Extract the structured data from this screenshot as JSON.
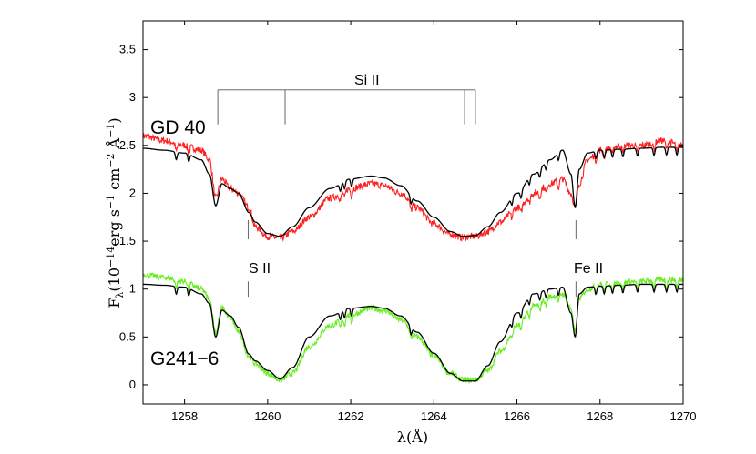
{
  "chart_data": {
    "type": "line",
    "title": "",
    "xlabel": "λ(Å)",
    "ylabel_parts": {
      "base": "F",
      "sub": "λ",
      "pre": "(10",
      "exp1": "−14",
      "mid": "erg s",
      "exp2": "−1",
      "mid2": " cm",
      "exp3": "−2",
      "mid3": " Å",
      "exp4": "−1",
      "post": ")"
    },
    "xlim": [
      1257,
      1270
    ],
    "ylim": [
      -0.2,
      3.8
    ],
    "xticks": [
      1258,
      1260,
      1262,
      1264,
      1266,
      1268,
      1270
    ],
    "xtick_labels": [
      "1258",
      "1260",
      "1262",
      "1264",
      "1266",
      "1268",
      "1270"
    ],
    "yticks": [
      0,
      0.5,
      1,
      1.5,
      2,
      2.5,
      3,
      3.5
    ],
    "ytick_labels": [
      "0",
      "0.5",
      "1",
      "1.5",
      "2",
      "2.5",
      "3",
      "3.5"
    ],
    "series": [
      {
        "name": "GD 40 observed",
        "color": "#ff2020",
        "noise": 0.035,
        "x": [
          1257.0,
          1257.5,
          1258.0,
          1258.4,
          1258.6,
          1258.75,
          1258.9,
          1259.1,
          1259.3,
          1259.55,
          1259.7,
          1260.0,
          1260.3,
          1260.6,
          1261.0,
          1261.5,
          1262.0,
          1262.5,
          1262.8,
          1263.2,
          1263.6,
          1264.0,
          1264.4,
          1264.7,
          1265.0,
          1265.3,
          1265.6,
          1266.0,
          1266.4,
          1266.8,
          1267.1,
          1267.3,
          1267.4,
          1267.5,
          1267.7,
          1268.0,
          1268.5,
          1269.0,
          1269.5,
          1270.0
        ],
        "y": [
          2.6,
          2.55,
          2.5,
          2.45,
          2.35,
          1.95,
          2.15,
          2.05,
          2.0,
          1.85,
          1.65,
          1.55,
          1.53,
          1.6,
          1.75,
          1.95,
          2.05,
          2.1,
          2.08,
          2.0,
          1.85,
          1.68,
          1.57,
          1.54,
          1.55,
          1.6,
          1.7,
          1.85,
          2.0,
          2.1,
          2.15,
          2.0,
          1.85,
          2.1,
          2.35,
          2.45,
          2.5,
          2.5,
          2.55,
          2.5
        ]
      },
      {
        "name": "GD 40 model",
        "color": "#000000",
        "noise": 0,
        "x": [
          1257.0,
          1257.5,
          1258.0,
          1258.4,
          1258.6,
          1258.75,
          1258.9,
          1259.1,
          1259.3,
          1259.55,
          1259.7,
          1260.0,
          1260.3,
          1260.6,
          1261.0,
          1261.5,
          1262.0,
          1262.5,
          1262.8,
          1263.2,
          1263.6,
          1264.0,
          1264.4,
          1264.7,
          1265.0,
          1265.3,
          1265.6,
          1266.0,
          1266.4,
          1266.8,
          1267.1,
          1267.3,
          1267.4,
          1267.5,
          1267.7,
          1268.0,
          1268.5,
          1269.0,
          1269.5,
          1270.0
        ],
        "y": [
          2.47,
          2.45,
          2.42,
          2.35,
          2.2,
          1.87,
          2.1,
          2.05,
          2.0,
          1.8,
          1.7,
          1.58,
          1.55,
          1.65,
          1.85,
          2.05,
          2.15,
          2.18,
          2.16,
          2.08,
          1.92,
          1.75,
          1.6,
          1.55,
          1.56,
          1.65,
          1.8,
          2.0,
          2.2,
          2.35,
          2.45,
          2.2,
          1.85,
          2.25,
          2.42,
          2.45,
          2.46,
          2.47,
          2.48,
          2.48
        ]
      },
      {
        "name": "G241-6 observed",
        "color": "#66ee22",
        "noise": 0.03,
        "x": [
          1257.0,
          1257.5,
          1258.0,
          1258.4,
          1258.6,
          1258.75,
          1258.9,
          1259.1,
          1259.3,
          1259.55,
          1259.7,
          1260.0,
          1260.3,
          1260.6,
          1261.0,
          1261.5,
          1262.0,
          1262.5,
          1262.8,
          1263.2,
          1263.6,
          1264.0,
          1264.4,
          1264.7,
          1265.0,
          1265.3,
          1265.6,
          1266.0,
          1266.4,
          1266.8,
          1267.1,
          1267.3,
          1267.4,
          1267.5,
          1267.7,
          1268.0,
          1268.5,
          1269.0,
          1269.5,
          1270.0
        ],
        "y": [
          1.15,
          1.12,
          1.08,
          1.0,
          0.9,
          0.55,
          0.8,
          0.7,
          0.55,
          0.3,
          0.22,
          0.12,
          0.05,
          0.12,
          0.4,
          0.62,
          0.73,
          0.8,
          0.78,
          0.68,
          0.5,
          0.3,
          0.12,
          0.05,
          0.05,
          0.15,
          0.35,
          0.62,
          0.82,
          0.92,
          0.95,
          0.8,
          0.55,
          0.9,
          1.0,
          1.05,
          1.07,
          1.08,
          1.1,
          1.1
        ]
      },
      {
        "name": "G241-6 model",
        "color": "#000000",
        "noise": 0,
        "x": [
          1257.0,
          1257.5,
          1258.0,
          1258.4,
          1258.6,
          1258.75,
          1258.9,
          1259.1,
          1259.3,
          1259.55,
          1259.7,
          1260.0,
          1260.3,
          1260.6,
          1261.0,
          1261.5,
          1262.0,
          1262.5,
          1262.8,
          1263.2,
          1263.6,
          1264.0,
          1264.4,
          1264.7,
          1265.0,
          1265.3,
          1265.6,
          1266.0,
          1266.4,
          1266.8,
          1267.1,
          1267.3,
          1267.4,
          1267.5,
          1267.7,
          1268.0,
          1268.5,
          1269.0,
          1269.5,
          1270.0
        ],
        "y": [
          1.05,
          1.04,
          1.02,
          0.95,
          0.85,
          0.5,
          0.78,
          0.72,
          0.6,
          0.32,
          0.25,
          0.15,
          0.06,
          0.18,
          0.5,
          0.72,
          0.8,
          0.82,
          0.8,
          0.72,
          0.55,
          0.33,
          0.12,
          0.04,
          0.04,
          0.2,
          0.45,
          0.75,
          0.95,
          1.0,
          1.02,
          0.75,
          0.5,
          0.95,
          1.02,
          1.03,
          1.04,
          1.05,
          1.05,
          1.05
        ]
      }
    ],
    "annotations": {
      "gd40_label": "GD 40",
      "g241_label": "G241−6",
      "si_label": "Si II",
      "s_label": "S II",
      "fe_label": "Fe II"
    },
    "si_lines": [
      1258.8,
      1260.42,
      1264.74,
      1265.0
    ],
    "si_bracket_y": 3.08,
    "s_line_x": 1259.53,
    "fe_line_x": 1267.42
  }
}
